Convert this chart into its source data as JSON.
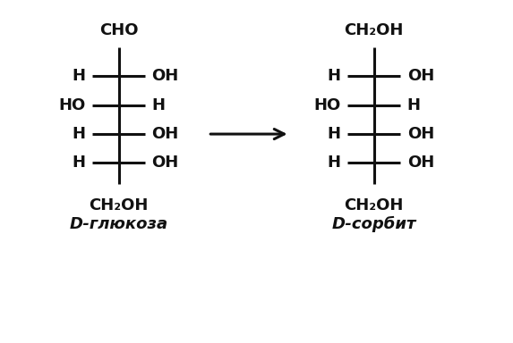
{
  "background_color": "#ffffff",
  "glucose_label": "D-глюкоза",
  "sorbitol_label": "D-сорбит",
  "glucose_top": "CHO",
  "glucose_bottom": "CH₂OH",
  "sorbitol_top": "CH₂OH",
  "sorbitol_bottom": "CH₂OH",
  "glucose_rows": [
    {
      "left": "H",
      "right": "OH"
    },
    {
      "left": "HO",
      "right": "H"
    },
    {
      "left": "H",
      "right": "OH"
    },
    {
      "left": "H",
      "right": "OH"
    }
  ],
  "sorbitol_rows": [
    {
      "left": "H",
      "right": "OH"
    },
    {
      "left": "HO",
      "right": "H"
    },
    {
      "left": "H",
      "right": "OH"
    },
    {
      "left": "H",
      "right": "OH"
    }
  ],
  "font_size_label": 13,
  "font_size_formula": 13,
  "line_color": "#111111",
  "text_color": "#111111",
  "lw": 2.2
}
